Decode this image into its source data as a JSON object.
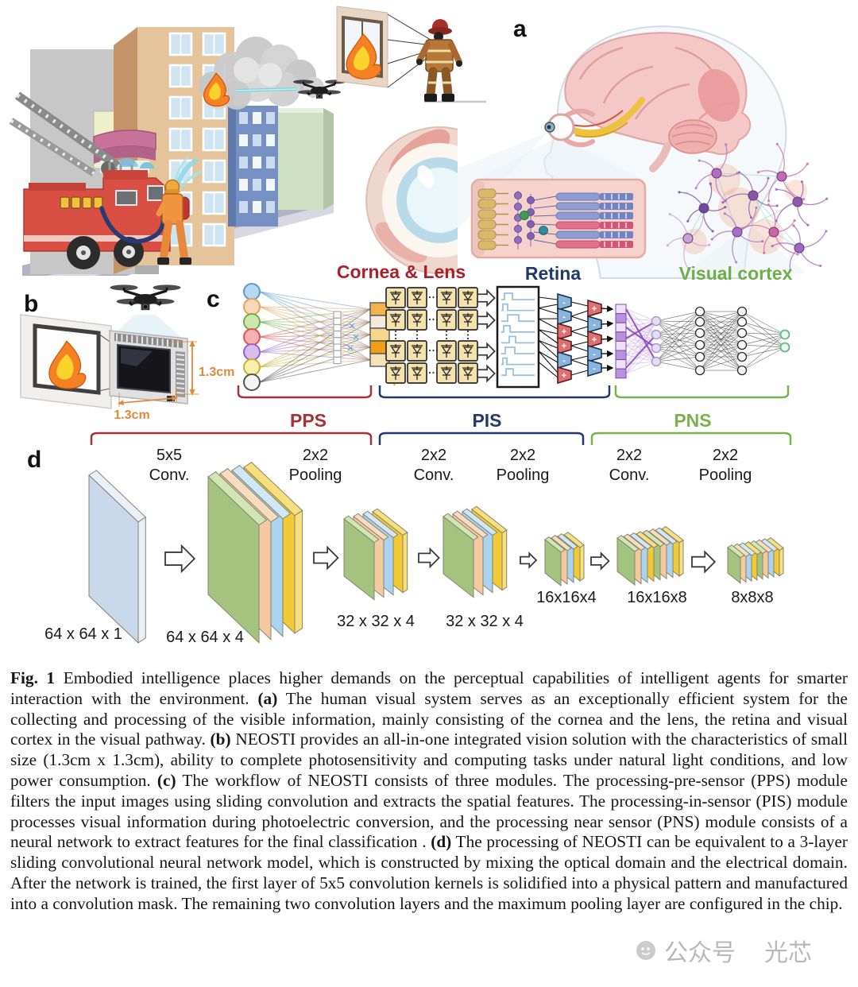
{
  "figure": {
    "panel_a": {
      "label": "a",
      "cornea_label": "Cornea & Lens",
      "retina_label": "Retina",
      "cortex_label": "Visual cortex",
      "label_colors": {
        "cornea": "#a8202a",
        "retina": "#1d3a6b",
        "cortex": "#6cae48"
      }
    },
    "panel_b": {
      "label": "b",
      "dim_vertical": "1.3cm",
      "dim_horizontal": "1.3cm",
      "dim_color": "#dd8b3a"
    },
    "panel_c": {
      "label": "c",
      "modules": [
        {
          "name": "PPS",
          "color": "#a83038",
          "bracket_c": [
            300,
            467
          ],
          "bracket_d": [
            115,
            467
          ]
        },
        {
          "name": "PIS",
          "color": "#23386b",
          "bracket_c": [
            478,
            767
          ],
          "bracket_d": [
            478,
            734
          ]
        },
        {
          "name": "PNS",
          "color": "#79b24a",
          "bracket_c": [
            775,
            992
          ],
          "bracket_d": [
            745,
            995
          ]
        }
      ],
      "amp_signs_col1": [
        "-",
        "-",
        "+",
        "+",
        "-",
        "+"
      ],
      "amp_signs_col2": [
        "+",
        "-",
        "+",
        "-",
        "-"
      ]
    },
    "panel_d": {
      "label": "d",
      "operations": [
        {
          "line1": "5x5",
          "line2": "Conv."
        },
        {
          "line1": "2x2",
          "line2": "Pooling"
        },
        {
          "line1": "2x2",
          "line2": "Conv."
        },
        {
          "line1": "2x2",
          "line2": "Pooling"
        },
        {
          "line1": "2x2",
          "line2": "Conv."
        },
        {
          "line1": "2x2",
          "line2": "Pooling"
        }
      ],
      "layers": [
        "64 x 64 x 1",
        "64 x 64 x 4",
        "32 x 32 x 4",
        "32 x 32 x 4",
        "16x16x4",
        "16x16x8",
        "8x8x8"
      ],
      "slab_palette": {
        "input": "#c9d8ea",
        "green": "#a3c47f",
        "peach": "#f4c9a1",
        "blue": "#a9d3ee",
        "yellow": "#f2ca35"
      }
    }
  },
  "caption": {
    "segments": [
      {
        "text": "Fig. 1",
        "bold": true
      },
      {
        "text": " Embodied intelligence places higher demands on the perceptual capabilities of intelligent agents for smarter interaction with the environment. ",
        "bold": false
      },
      {
        "text": "(a)",
        "bold": true
      },
      {
        "text": " The human visual system serves as an exceptionally efficient system for the collecting and processing of the visible information, mainly consisting of the cornea and the lens, the retina and visual cortex in the visual pathway. ",
        "bold": false
      },
      {
        "text": "(b)",
        "bold": true
      },
      {
        "text": " NEOSTI provides an all-in-one integrated vision solution with the characteristics of small size (1.3cm x 1.3cm), ability to complete photosensitivity and computing tasks under natural light conditions, and low power consumption. ",
        "bold": false
      },
      {
        "text": "(c)",
        "bold": true
      },
      {
        "text": " The workflow of NEOSTI consists of three modules. The processing-pre-sensor (PPS) module filters the input images using sliding convolution and extracts the spatial features. The processing-in-sensor (PIS) module processes visual information during photoelectric conversion, and the processing near sensor (PNS) module consists of a neural network to extract features for the final classification . ",
        "bold": false
      },
      {
        "text": "(d)",
        "bold": true
      },
      {
        "text": " The processing of NEOSTI can be equivalent to a 3-layer sliding convolutional neural network model, which is constructed by mixing the optical domain and the electrical domain. After the network is trained, the first layer of 5x5 convolution kernels is solidified into a physical pattern and manufactured into a convolution mask. The remaining two convolution layers and the maximum pooling layer are configured in the chip.",
        "bold": false
      }
    ]
  },
  "watermark": {
    "icon": "wechat-icon",
    "text_1": "公众号",
    "text_2": "光芯"
  }
}
